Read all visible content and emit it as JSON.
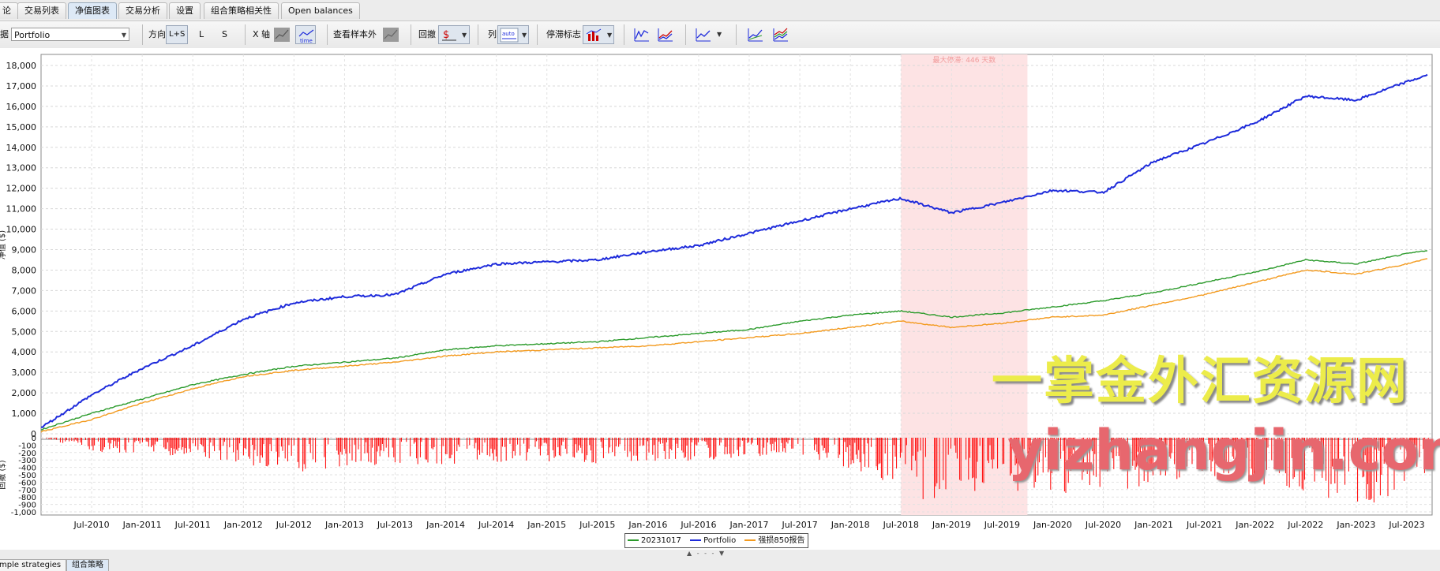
{
  "tabs": [
    {
      "label": "论",
      "active": false
    },
    {
      "label": "交易列表",
      "active": false
    },
    {
      "label": "净值图表",
      "active": true
    },
    {
      "label": "交易分析",
      "active": false
    },
    {
      "label": "设置",
      "active": false
    },
    {
      "label": "组合策略相关性",
      "active": false
    },
    {
      "label": "Open balances",
      "active": false
    }
  ],
  "toolbar": {
    "selector_label": "据",
    "selector_value": "Portfolio",
    "direction_label": "方向",
    "direction_options": [
      "L+S",
      "L",
      "S"
    ],
    "xaxis_label": "X 轴",
    "sample_label": "查看样本外",
    "drawdown_label": "回撤",
    "column_label": "列",
    "sliding_label": "停滞标志"
  },
  "chart_data": {
    "type": "line",
    "ylabel": "净值 ($)",
    "ylim": [
      0,
      18000
    ],
    "yticks": [
      "18,000",
      "17,000",
      "16,000",
      "15,000",
      "14,000",
      "13,000",
      "12,000",
      "11,000",
      "10,000",
      "9,000",
      "8,000",
      "7,000",
      "6,000",
      "5,000",
      "4,000",
      "3,000",
      "2,000",
      "1,000",
      "0"
    ],
    "x_ticks": [
      "Jul-2010",
      "Jan-2011",
      "Jul-2011",
      "Jan-2012",
      "Jul-2012",
      "Jan-2013",
      "Jul-2013",
      "Jan-2014",
      "Jul-2014",
      "Jan-2015",
      "Jul-2015",
      "Jan-2016",
      "Jul-2016",
      "Jan-2017",
      "Jul-2017",
      "Jan-2018",
      "Jul-2018",
      "Jan-2019",
      "Jul-2019",
      "Jan-2020",
      "Jul-2020",
      "Jan-2021",
      "Jul-2021",
      "Jan-2022",
      "Jul-2022",
      "Jan-2023",
      "Jul-2023"
    ],
    "x_range": [
      "2010-01",
      "2023-10"
    ],
    "highlight": {
      "label": "最大停滞: 446 天数",
      "from": "2018-07",
      "to": "2019-10",
      "color": "#fde3e4"
    },
    "series": [
      {
        "name": "20231017",
        "color": "#2a9a2a",
        "x": [
          "2010-01",
          "2010-07",
          "2011-01",
          "2011-07",
          "2012-01",
          "2012-07",
          "2013-01",
          "2013-07",
          "2014-01",
          "2014-07",
          "2015-01",
          "2015-07",
          "2016-01",
          "2016-07",
          "2017-01",
          "2017-07",
          "2018-01",
          "2018-07",
          "2019-01",
          "2019-07",
          "2020-01",
          "2020-07",
          "2021-01",
          "2021-07",
          "2022-01",
          "2022-07",
          "2023-01",
          "2023-07",
          "2023-10"
        ],
        "values": [
          200,
          1000,
          1700,
          2400,
          2900,
          3300,
          3500,
          3700,
          4100,
          4300,
          4400,
          4500,
          4700,
          4900,
          5100,
          5500,
          5800,
          6000,
          5700,
          5900,
          6200,
          6500,
          6900,
          7400,
          7900,
          8500,
          8300,
          8800,
          9000
        ]
      },
      {
        "name": "Portfolio",
        "color": "#1e2bdb",
        "x": [
          "2010-01",
          "2010-07",
          "2011-01",
          "2011-07",
          "2012-01",
          "2012-07",
          "2013-01",
          "2013-07",
          "2014-01",
          "2014-07",
          "2015-01",
          "2015-07",
          "2016-01",
          "2016-07",
          "2017-01",
          "2017-07",
          "2018-01",
          "2018-07",
          "2019-01",
          "2019-07",
          "2020-01",
          "2020-07",
          "2021-01",
          "2021-07",
          "2022-01",
          "2022-07",
          "2023-01",
          "2023-07",
          "2023-10"
        ],
        "values": [
          300,
          1900,
          3200,
          4300,
          5600,
          6400,
          6700,
          6800,
          7800,
          8300,
          8400,
          8500,
          8900,
          9200,
          9800,
          10400,
          11000,
          11500,
          10800,
          11300,
          11900,
          11800,
          13300,
          14200,
          15200,
          16500,
          16300,
          17200,
          17600
        ]
      },
      {
        "name": "强损850报告",
        "color": "#f39a1e",
        "x": [
          "2010-01",
          "2010-07",
          "2011-01",
          "2011-07",
          "2012-01",
          "2012-07",
          "2013-01",
          "2013-07",
          "2014-01",
          "2014-07",
          "2015-01",
          "2015-07",
          "2016-01",
          "2016-07",
          "2017-01",
          "2017-07",
          "2018-01",
          "2018-07",
          "2019-01",
          "2019-07",
          "2020-01",
          "2020-07",
          "2021-01",
          "2021-07",
          "2022-01",
          "2022-07",
          "2023-01",
          "2023-07",
          "2023-10"
        ],
        "values": [
          100,
          700,
          1500,
          2200,
          2800,
          3100,
          3300,
          3500,
          3800,
          4000,
          4100,
          4200,
          4300,
          4500,
          4700,
          4900,
          5200,
          5500,
          5200,
          5400,
          5700,
          5800,
          6300,
          6800,
          7400,
          8000,
          7800,
          8300,
          8600
        ]
      }
    ],
    "drawdown": {
      "ylabel": "回撤 ($)",
      "ylim": [
        -1000,
        0
      ],
      "yticks": [
        "0",
        "-100",
        "-200",
        "-300",
        "-400",
        "-500",
        "-600",
        "-700",
        "-800",
        "-900",
        "-1,000"
      ],
      "x": [
        "2010-07",
        "2011-07",
        "2012-07",
        "2013-07",
        "2014-07",
        "2015-07",
        "2016-07",
        "2017-07",
        "2018-07",
        "2018-10",
        "2019-01",
        "2019-07",
        "2020-07",
        "2021-07",
        "2022-01",
        "2022-07",
        "2023-01",
        "2023-03",
        "2023-07"
      ],
      "values": [
        -180,
        -250,
        -420,
        -350,
        -300,
        -320,
        -280,
        -200,
        -600,
        -800,
        -700,
        -650,
        -700,
        -450,
        -550,
        -700,
        -800,
        -950,
        -500
      ]
    }
  },
  "legend": [
    {
      "name": "20231017",
      "color": "#2a9a2a"
    },
    {
      "name": "Portfolio",
      "color": "#1e2bdb"
    },
    {
      "name": "强损850报告",
      "color": "#f39a1e"
    }
  ],
  "bottom_tabs": [
    {
      "label": "mple strategies",
      "active": false
    },
    {
      "label": "组合策略",
      "active": true
    }
  ],
  "watermark": {
    "line1": "一掌金外汇资源网",
    "line2": "yizhangjin.com"
  }
}
